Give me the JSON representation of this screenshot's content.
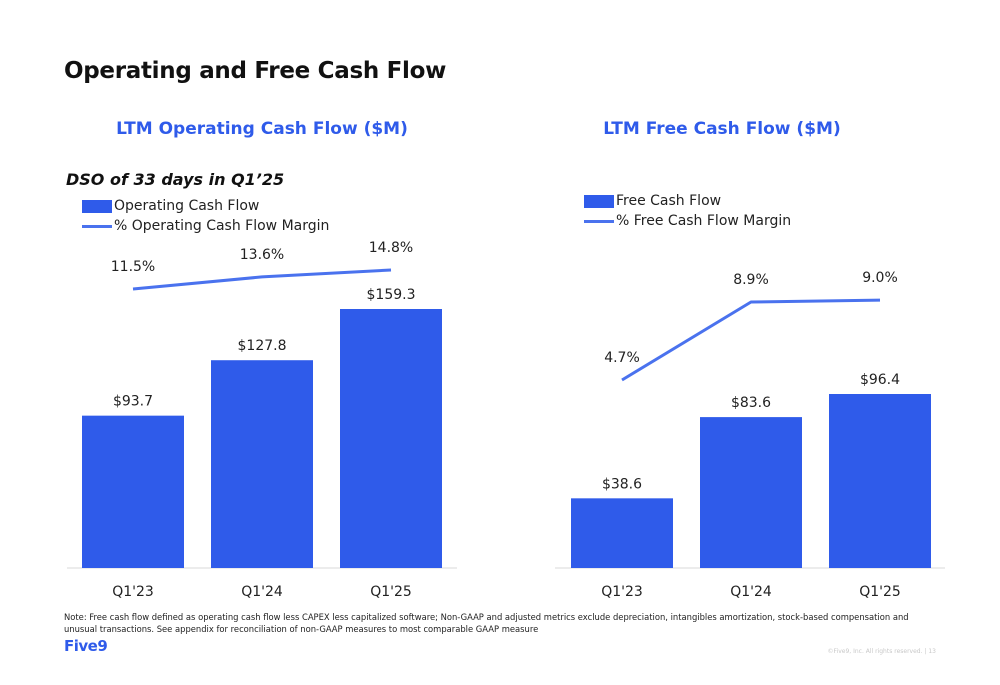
{
  "page": {
    "title": "Operating and Free Cash Flow",
    "footnote": "Note: Free cash flow defined as operating cash flow less CAPEX less capitalized software; Non-GAAP and adjusted metrics exclude depreciation, intangibles amortization, stock-based compensation and unusual transactions. See appendix for reconciliation of non-GAAP measures to most comparable GAAP measure",
    "logo": "Five9",
    "copyright": "©Five9, Inc. All rights reserved. | 13"
  },
  "colors": {
    "bar": "#2f5bea",
    "line": "#4a72ee",
    "title": "#2f5bea"
  },
  "chart_data": [
    {
      "type": "bar",
      "title": "LTM Operating Cash Flow ($M)",
      "subtitle": "DSO of 33 days in Q1’25",
      "categories": [
        "Q1'23",
        "Q1'24",
        "Q1'25"
      ],
      "series": [
        {
          "name": "Operating Cash Flow",
          "type": "bar",
          "values": [
            93.7,
            127.8,
            159.3
          ],
          "labels": [
            "$93.7",
            "$127.8",
            "$159.3"
          ]
        },
        {
          "name": "% Operating Cash Flow Margin",
          "type": "line",
          "values": [
            11.5,
            13.6,
            14.8
          ],
          "labels": [
            "11.5%",
            "13.6%",
            "14.8%"
          ]
        }
      ],
      "legend": "top-left",
      "grid": false
    },
    {
      "type": "bar",
      "title": "LTM Free Cash Flow ($M)",
      "categories": [
        "Q1'23",
        "Q1'24",
        "Q1'25"
      ],
      "series": [
        {
          "name": "Free Cash Flow",
          "type": "bar",
          "values": [
            38.6,
            83.6,
            96.4
          ],
          "labels": [
            "$38.6",
            "$83.6",
            "$96.4"
          ]
        },
        {
          "name": "% Free Cash Flow Margin",
          "type": "line",
          "values": [
            4.7,
            8.9,
            9.0
          ],
          "labels": [
            "4.7%",
            "8.9%",
            "9.0%"
          ]
        }
      ],
      "legend": "top-left",
      "grid": false
    }
  ]
}
